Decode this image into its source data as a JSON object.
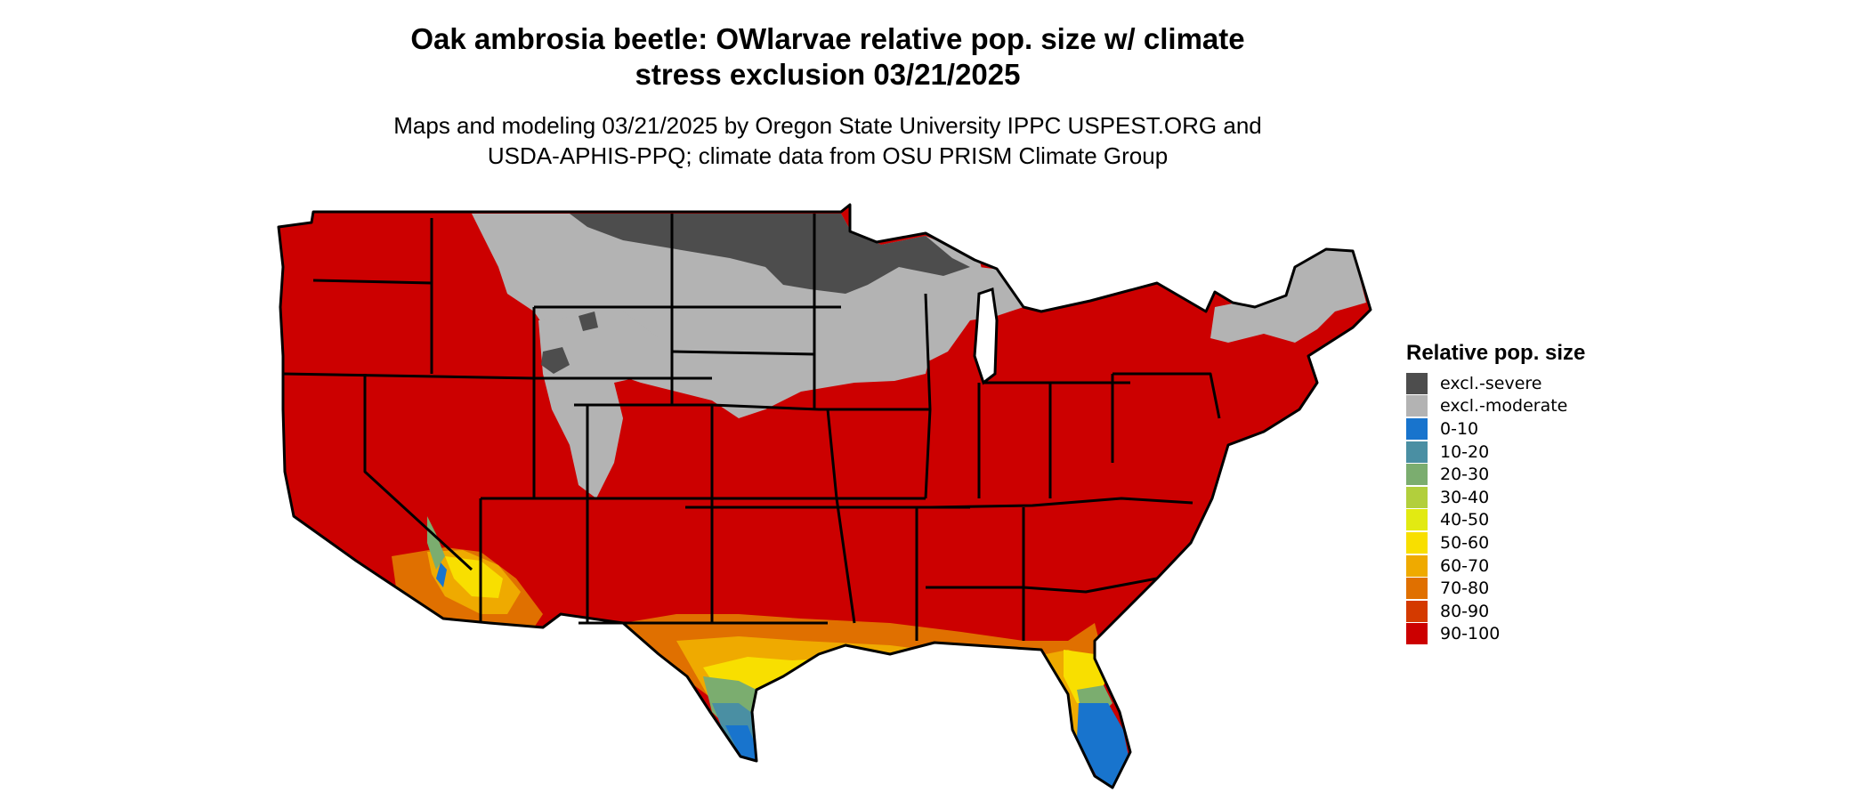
{
  "title": {
    "line1": "Oak ambrosia beetle: OWlarvae relative pop. size w/ climate",
    "line2": "stress exclusion 03/21/2025"
  },
  "subtitle": {
    "line1": "Maps and modeling 03/21/2025 by Oregon State University IPPC USPEST.ORG and",
    "line2": "USDA-APHIS-PPQ; climate data from OSU PRISM Climate Group"
  },
  "legend": {
    "title": "Relative pop. size",
    "items": [
      {
        "label": "excl.-severe",
        "color": "#4d4d4d"
      },
      {
        "label": "excl.-moderate",
        "color": "#b3b3b3"
      },
      {
        "label": "0-10",
        "color": "#1874cd"
      },
      {
        "label": "10-20",
        "color": "#4a8fa3"
      },
      {
        "label": "20-30",
        "color": "#7bad6f"
      },
      {
        "label": "30-40",
        "color": "#b2cf3c"
      },
      {
        "label": "40-50",
        "color": "#e2ea12"
      },
      {
        "label": "50-60",
        "color": "#f8df00"
      },
      {
        "label": "60-70",
        "color": "#efaa00"
      },
      {
        "label": "70-80",
        "color": "#e07000"
      },
      {
        "label": "80-90",
        "color": "#d43a00"
      },
      {
        "label": "90-100",
        "color": "#cc0000"
      }
    ]
  },
  "map": {
    "region": "Contiguous United States",
    "colors": {
      "base": "#cc0000",
      "excl_severe": "#4d4d4d",
      "excl_moderate": "#b3b3b3",
      "range_0_10": "#1874cd",
      "range_10_20": "#4a8fa3",
      "range_20_30": "#7bad6f",
      "range_40_50": "#e2ea12",
      "range_50_60": "#f8df00",
      "range_60_70": "#efaa00",
      "range_70_80": "#e07000",
      "border": "#000000"
    }
  }
}
